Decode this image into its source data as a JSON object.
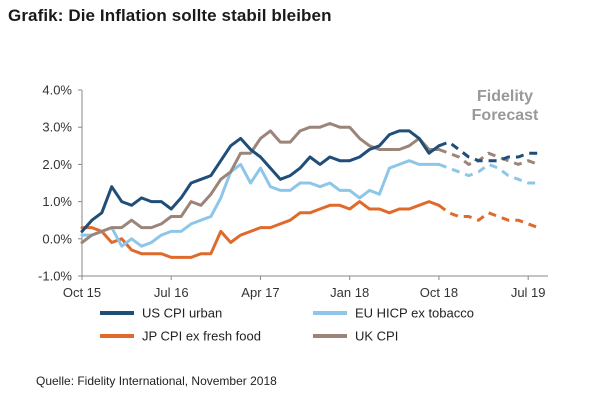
{
  "title": "Grafik: Die Inflation sollte stabil bleiben",
  "source": "Quelle: Fidelity International, November 2018",
  "chart_data": {
    "type": "line",
    "title": "",
    "xlabel": "",
    "ylabel": "",
    "x_tick_labels": [
      "Oct 15",
      "Jul 16",
      "Apr 17",
      "Jan 18",
      "Oct 18",
      "Jul 19"
    ],
    "x_range": [
      "2015-10",
      "2019-09"
    ],
    "y_tick_labels": [
      "-1.0%",
      "0.0%",
      "1.0%",
      "2.0%",
      "3.0%",
      "4.0%"
    ],
    "ylim": [
      -1.0,
      4.0
    ],
    "annotation": {
      "line1": "Fidelity",
      "line2": "Forecast"
    },
    "forecast_start": "2018-10",
    "legend_position": "bottom",
    "grid": false,
    "series": [
      {
        "name": "US CPI urban",
        "color": "#1f4e79",
        "actual": [
          [
            "2015-10",
            0.2
          ],
          [
            "2015-11",
            0.5
          ],
          [
            "2015-12",
            0.7
          ],
          [
            "2016-01",
            1.4
          ],
          [
            "2016-02",
            1.0
          ],
          [
            "2016-03",
            0.9
          ],
          [
            "2016-04",
            1.1
          ],
          [
            "2016-05",
            1.0
          ],
          [
            "2016-06",
            1.0
          ],
          [
            "2016-07",
            0.8
          ],
          [
            "2016-08",
            1.1
          ],
          [
            "2016-09",
            1.5
          ],
          [
            "2016-10",
            1.6
          ],
          [
            "2016-11",
            1.7
          ],
          [
            "2016-12",
            2.1
          ],
          [
            "2017-01",
            2.5
          ],
          [
            "2017-02",
            2.7
          ],
          [
            "2017-03",
            2.4
          ],
          [
            "2017-04",
            2.2
          ],
          [
            "2017-05",
            1.9
          ],
          [
            "2017-06",
            1.6
          ],
          [
            "2017-07",
            1.7
          ],
          [
            "2017-08",
            1.9
          ],
          [
            "2017-09",
            2.2
          ],
          [
            "2017-10",
            2.0
          ],
          [
            "2017-11",
            2.2
          ],
          [
            "2017-12",
            2.1
          ],
          [
            "2018-01",
            2.1
          ],
          [
            "2018-02",
            2.2
          ],
          [
            "2018-03",
            2.4
          ],
          [
            "2018-04",
            2.5
          ],
          [
            "2018-05",
            2.8
          ],
          [
            "2018-06",
            2.9
          ],
          [
            "2018-07",
            2.9
          ],
          [
            "2018-08",
            2.7
          ],
          [
            "2018-09",
            2.3
          ],
          [
            "2018-10",
            2.5
          ]
        ],
        "forecast": [
          [
            "2018-10",
            2.5
          ],
          [
            "2018-11",
            2.6
          ],
          [
            "2018-12",
            2.4
          ],
          [
            "2019-01",
            2.2
          ],
          [
            "2019-02",
            2.1
          ],
          [
            "2019-03",
            2.1
          ],
          [
            "2019-04",
            2.1
          ],
          [
            "2019-05",
            2.2
          ],
          [
            "2019-06",
            2.2
          ],
          [
            "2019-07",
            2.3
          ],
          [
            "2019-08",
            2.3
          ]
        ]
      },
      {
        "name": "EU HICP ex tobacco",
        "color": "#8ec6ea",
        "actual": [
          [
            "2015-10",
            0.1
          ],
          [
            "2015-11",
            0.1
          ],
          [
            "2015-12",
            0.2
          ],
          [
            "2016-01",
            0.3
          ],
          [
            "2016-02",
            -0.2
          ],
          [
            "2016-03",
            0.0
          ],
          [
            "2016-04",
            -0.2
          ],
          [
            "2016-05",
            -0.1
          ],
          [
            "2016-06",
            0.1
          ],
          [
            "2016-07",
            0.2
          ],
          [
            "2016-08",
            0.2
          ],
          [
            "2016-09",
            0.4
          ],
          [
            "2016-10",
            0.5
          ],
          [
            "2016-11",
            0.6
          ],
          [
            "2016-12",
            1.1
          ],
          [
            "2017-01",
            1.8
          ],
          [
            "2017-02",
            2.0
          ],
          [
            "2017-03",
            1.5
          ],
          [
            "2017-04",
            1.9
          ],
          [
            "2017-05",
            1.4
          ],
          [
            "2017-06",
            1.3
          ],
          [
            "2017-07",
            1.3
          ],
          [
            "2017-08",
            1.5
          ],
          [
            "2017-09",
            1.5
          ],
          [
            "2017-10",
            1.4
          ],
          [
            "2017-11",
            1.5
          ],
          [
            "2017-12",
            1.3
          ],
          [
            "2018-01",
            1.3
          ],
          [
            "2018-02",
            1.1
          ],
          [
            "2018-03",
            1.3
          ],
          [
            "2018-04",
            1.2
          ],
          [
            "2018-05",
            1.9
          ],
          [
            "2018-06",
            2.0
          ],
          [
            "2018-07",
            2.1
          ],
          [
            "2018-08",
            2.0
          ],
          [
            "2018-09",
            2.0
          ],
          [
            "2018-10",
            2.0
          ]
        ],
        "forecast": [
          [
            "2018-10",
            2.0
          ],
          [
            "2018-11",
            1.9
          ],
          [
            "2018-12",
            1.8
          ],
          [
            "2019-01",
            1.7
          ],
          [
            "2019-02",
            1.8
          ],
          [
            "2019-03",
            2.0
          ],
          [
            "2019-04",
            1.9
          ],
          [
            "2019-05",
            1.7
          ],
          [
            "2019-06",
            1.6
          ],
          [
            "2019-07",
            1.5
          ],
          [
            "2019-08",
            1.5
          ]
        ]
      },
      {
        "name": "JP CPI ex fresh food",
        "color": "#e06a2c",
        "actual": [
          [
            "2015-10",
            0.3
          ],
          [
            "2015-11",
            0.3
          ],
          [
            "2015-12",
            0.2
          ],
          [
            "2016-01",
            -0.1
          ],
          [
            "2016-02",
            0.0
          ],
          [
            "2016-03",
            -0.3
          ],
          [
            "2016-04",
            -0.4
          ],
          [
            "2016-05",
            -0.4
          ],
          [
            "2016-06",
            -0.4
          ],
          [
            "2016-07",
            -0.5
          ],
          [
            "2016-08",
            -0.5
          ],
          [
            "2016-09",
            -0.5
          ],
          [
            "2016-10",
            -0.4
          ],
          [
            "2016-11",
            -0.4
          ],
          [
            "2016-12",
            0.2
          ],
          [
            "2017-01",
            -0.1
          ],
          [
            "2017-02",
            0.1
          ],
          [
            "2017-03",
            0.2
          ],
          [
            "2017-04",
            0.3
          ],
          [
            "2017-05",
            0.3
          ],
          [
            "2017-06",
            0.4
          ],
          [
            "2017-07",
            0.5
          ],
          [
            "2017-08",
            0.7
          ],
          [
            "2017-09",
            0.7
          ],
          [
            "2017-10",
            0.8
          ],
          [
            "2017-11",
            0.9
          ],
          [
            "2017-12",
            0.9
          ],
          [
            "2018-01",
            0.8
          ],
          [
            "2018-02",
            1.0
          ],
          [
            "2018-03",
            0.8
          ],
          [
            "2018-04",
            0.8
          ],
          [
            "2018-05",
            0.7
          ],
          [
            "2018-06",
            0.8
          ],
          [
            "2018-07",
            0.8
          ],
          [
            "2018-08",
            0.9
          ],
          [
            "2018-09",
            1.0
          ],
          [
            "2018-10",
            0.9
          ]
        ],
        "forecast": [
          [
            "2018-10",
            0.9
          ],
          [
            "2018-11",
            0.7
          ],
          [
            "2018-12",
            0.6
          ],
          [
            "2019-01",
            0.6
          ],
          [
            "2019-02",
            0.5
          ],
          [
            "2019-03",
            0.7
          ],
          [
            "2019-04",
            0.6
          ],
          [
            "2019-05",
            0.5
          ],
          [
            "2019-06",
            0.5
          ],
          [
            "2019-07",
            0.4
          ],
          [
            "2019-08",
            0.3
          ]
        ]
      },
      {
        "name": "UK CPI",
        "color": "#9b8579",
        "actual": [
          [
            "2015-10",
            -0.1
          ],
          [
            "2015-11",
            0.1
          ],
          [
            "2015-12",
            0.2
          ],
          [
            "2016-01",
            0.3
          ],
          [
            "2016-02",
            0.3
          ],
          [
            "2016-03",
            0.5
          ],
          [
            "2016-04",
            0.3
          ],
          [
            "2016-05",
            0.3
          ],
          [
            "2016-06",
            0.4
          ],
          [
            "2016-07",
            0.6
          ],
          [
            "2016-08",
            0.6
          ],
          [
            "2016-09",
            1.0
          ],
          [
            "2016-10",
            0.9
          ],
          [
            "2016-11",
            1.2
          ],
          [
            "2016-12",
            1.6
          ],
          [
            "2017-01",
            1.8
          ],
          [
            "2017-02",
            2.3
          ],
          [
            "2017-03",
            2.3
          ],
          [
            "2017-04",
            2.7
          ],
          [
            "2017-05",
            2.9
          ],
          [
            "2017-06",
            2.6
          ],
          [
            "2017-07",
            2.6
          ],
          [
            "2017-08",
            2.9
          ],
          [
            "2017-09",
            3.0
          ],
          [
            "2017-10",
            3.0
          ],
          [
            "2017-11",
            3.1
          ],
          [
            "2017-12",
            3.0
          ],
          [
            "2018-01",
            3.0
          ],
          [
            "2018-02",
            2.7
          ],
          [
            "2018-03",
            2.5
          ],
          [
            "2018-04",
            2.4
          ],
          [
            "2018-05",
            2.4
          ],
          [
            "2018-06",
            2.4
          ],
          [
            "2018-07",
            2.5
          ],
          [
            "2018-08",
            2.7
          ],
          [
            "2018-09",
            2.4
          ],
          [
            "2018-10",
            2.4
          ]
        ],
        "forecast": [
          [
            "2018-10",
            2.4
          ],
          [
            "2018-11",
            2.3
          ],
          [
            "2018-12",
            2.2
          ],
          [
            "2019-01",
            2.0
          ],
          [
            "2019-02",
            2.1
          ],
          [
            "2019-03",
            2.3
          ],
          [
            "2019-04",
            2.2
          ],
          [
            "2019-05",
            2.1
          ],
          [
            "2019-06",
            2.0
          ],
          [
            "2019-07",
            2.1
          ],
          [
            "2019-08",
            2.0
          ]
        ]
      }
    ]
  }
}
